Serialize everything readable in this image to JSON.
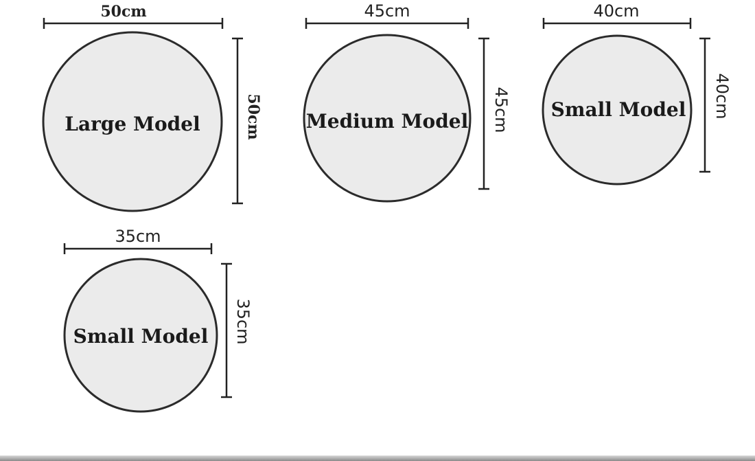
{
  "items": [
    {
      "label": "Large Model",
      "width_text": "50cm",
      "height_text": "50cm"
    },
    {
      "label": "Medium Model",
      "width_text": "45cm",
      "height_text": "45cm"
    },
    {
      "label": "Small Model",
      "width_text": "40cm",
      "height_text": "40cm"
    },
    {
      "label": "Small Model",
      "width_text": "35cm",
      "height_text": "35cm"
    }
  ],
  "colors": {
    "circle_fill": "#ebebeb",
    "circle_stroke": "#2b2b2b",
    "text": "#1a1a1a"
  }
}
